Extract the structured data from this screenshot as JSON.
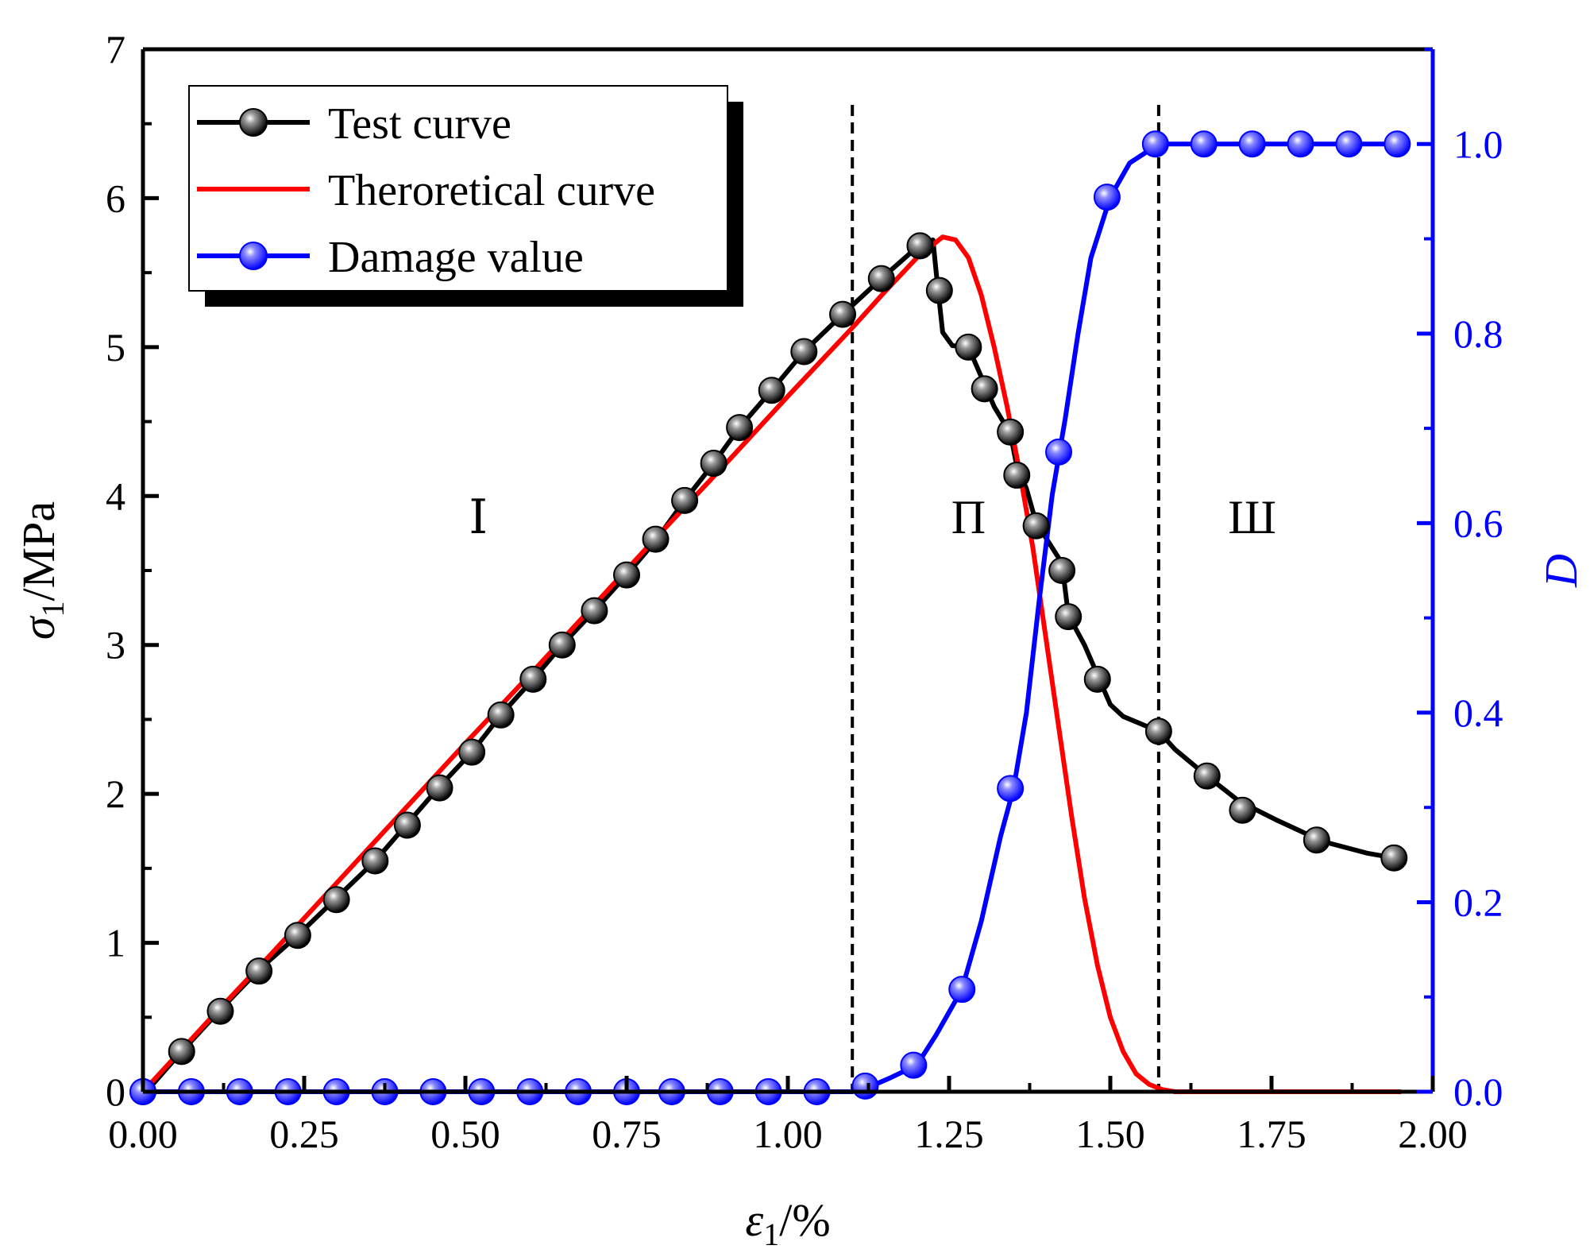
{
  "chart_data": {
    "type": "line",
    "title": "",
    "xlabel": {
      "symbol": "ε",
      "subscript": "1",
      "unit": "/%"
    },
    "ylabel": {
      "symbol": "σ",
      "subscript": "1",
      "unit": "/MPa"
    },
    "y2label": "D",
    "xlim": [
      0,
      2.0
    ],
    "ylim": [
      0,
      7
    ],
    "y2lim": [
      0,
      1.1
    ],
    "xticks": [
      "0.00",
      "0.25",
      "0.50",
      "0.75",
      "1.00",
      "1.25",
      "1.50",
      "1.75",
      "2.00"
    ],
    "yticks": [
      "0",
      "1",
      "2",
      "3",
      "4",
      "5",
      "6",
      "7"
    ],
    "y2ticks": [
      "0.0",
      "0.2",
      "0.4",
      "0.6",
      "0.8",
      "1.0"
    ],
    "legend": {
      "position": "top-left",
      "entries": [
        "Test curve",
        "Theroretical curve",
        "Damage value"
      ]
    },
    "colors": {
      "test": "#000000",
      "theory": "#ff0000",
      "damage": "#0000ff"
    },
    "divider_x": [
      1.1,
      1.575
    ],
    "regions": [
      {
        "label": "Ⅰ",
        "x": 0.52,
        "y": 3.75
      },
      {
        "label": "Π",
        "x": 1.28,
        "y": 3.75
      },
      {
        "label": "Ш",
        "x": 1.72,
        "y": 3.75
      }
    ],
    "series": [
      {
        "name": "Test curve",
        "axis": "left",
        "line": [
          [
            0.005,
            0.0
          ],
          [
            0.06,
            0.27
          ],
          [
            0.12,
            0.55
          ],
          [
            0.18,
            0.82
          ],
          [
            0.24,
            1.05
          ],
          [
            0.3,
            1.3
          ],
          [
            0.36,
            1.55
          ],
          [
            0.41,
            1.8
          ],
          [
            0.46,
            2.05
          ],
          [
            0.51,
            2.28
          ],
          [
            0.555,
            2.53
          ],
          [
            0.605,
            2.77
          ],
          [
            0.65,
            3.0
          ],
          [
            0.7,
            3.23
          ],
          [
            0.75,
            3.47
          ],
          [
            0.795,
            3.7
          ],
          [
            0.84,
            3.97
          ],
          [
            0.885,
            4.22
          ],
          [
            0.925,
            4.46
          ],
          [
            0.975,
            4.71
          ],
          [
            1.025,
            4.97
          ],
          [
            1.085,
            5.22
          ],
          [
            1.145,
            5.46
          ],
          [
            1.2,
            5.67
          ],
          [
            1.225,
            5.72
          ],
          [
            1.23,
            5.5
          ],
          [
            1.24,
            5.1
          ],
          [
            1.255,
            5.01
          ],
          [
            1.28,
            5.0
          ],
          [
            1.3,
            4.8
          ],
          [
            1.32,
            4.6
          ],
          [
            1.345,
            4.42
          ],
          [
            1.355,
            4.2
          ],
          [
            1.37,
            4.05
          ],
          [
            1.385,
            3.82
          ],
          [
            1.4,
            3.72
          ],
          [
            1.425,
            3.55
          ],
          [
            1.435,
            3.2
          ],
          [
            1.46,
            3.0
          ],
          [
            1.48,
            2.8
          ],
          [
            1.5,
            2.6
          ],
          [
            1.52,
            2.52
          ],
          [
            1.575,
            2.42
          ],
          [
            1.6,
            2.3
          ],
          [
            1.65,
            2.12
          ],
          [
            1.7,
            1.95
          ],
          [
            1.76,
            1.82
          ],
          [
            1.83,
            1.68
          ],
          [
            1.9,
            1.6
          ],
          [
            1.94,
            1.57
          ]
        ],
        "markers": [
          [
            0.0,
            0.0
          ],
          [
            0.06,
            0.27
          ],
          [
            0.12,
            0.54
          ],
          [
            0.18,
            0.81
          ],
          [
            0.24,
            1.05
          ],
          [
            0.3,
            1.29
          ],
          [
            0.36,
            1.55
          ],
          [
            0.41,
            1.79
          ],
          [
            0.46,
            2.04
          ],
          [
            0.51,
            2.28
          ],
          [
            0.555,
            2.53
          ],
          [
            0.605,
            2.77
          ],
          [
            0.65,
            3.0
          ],
          [
            0.7,
            3.23
          ],
          [
            0.75,
            3.47
          ],
          [
            0.795,
            3.71
          ],
          [
            0.84,
            3.97
          ],
          [
            0.885,
            4.22
          ],
          [
            0.925,
            4.46
          ],
          [
            0.975,
            4.71
          ],
          [
            1.025,
            4.97
          ],
          [
            1.085,
            5.22
          ],
          [
            1.145,
            5.46
          ],
          [
            1.205,
            5.68
          ],
          [
            1.235,
            5.38
          ],
          [
            1.28,
            5.0
          ],
          [
            1.305,
            4.72
          ],
          [
            1.345,
            4.43
          ],
          [
            1.355,
            4.14
          ],
          [
            1.385,
            3.8
          ],
          [
            1.425,
            3.5
          ],
          [
            1.435,
            3.19
          ],
          [
            1.48,
            2.77
          ],
          [
            1.575,
            2.42
          ],
          [
            1.65,
            2.12
          ],
          [
            1.705,
            1.89
          ],
          [
            1.82,
            1.69
          ],
          [
            1.94,
            1.57
          ]
        ]
      },
      {
        "name": "Theroretical curve",
        "axis": "left",
        "line": [
          [
            0.0,
            0.0
          ],
          [
            0.1,
            0.47
          ],
          [
            0.2,
            0.93
          ],
          [
            0.3,
            1.4
          ],
          [
            0.4,
            1.87
          ],
          [
            0.5,
            2.34
          ],
          [
            0.6,
            2.8
          ],
          [
            0.7,
            3.27
          ],
          [
            0.8,
            3.74
          ],
          [
            0.9,
            4.2
          ],
          [
            1.0,
            4.67
          ],
          [
            1.05,
            4.9
          ],
          [
            1.1,
            5.13
          ],
          [
            1.15,
            5.37
          ],
          [
            1.2,
            5.6
          ],
          [
            1.24,
            5.74
          ],
          [
            1.26,
            5.72
          ],
          [
            1.28,
            5.6
          ],
          [
            1.3,
            5.35
          ],
          [
            1.32,
            5.0
          ],
          [
            1.34,
            4.6
          ],
          [
            1.36,
            4.15
          ],
          [
            1.38,
            3.65
          ],
          [
            1.4,
            3.05
          ],
          [
            1.42,
            2.45
          ],
          [
            1.44,
            1.85
          ],
          [
            1.46,
            1.3
          ],
          [
            1.48,
            0.85
          ],
          [
            1.5,
            0.5
          ],
          [
            1.52,
            0.27
          ],
          [
            1.54,
            0.12
          ],
          [
            1.56,
            0.05
          ],
          [
            1.58,
            0.015
          ],
          [
            1.6,
            0.0
          ],
          [
            1.95,
            0.0
          ]
        ]
      },
      {
        "name": "Damage value",
        "axis": "right",
        "line": [
          [
            0.0,
            0.0
          ],
          [
            1.05,
            0.0
          ],
          [
            1.1,
            0.0
          ],
          [
            1.13,
            0.006
          ],
          [
            1.16,
            0.015
          ],
          [
            1.2,
            0.028
          ],
          [
            1.23,
            0.06
          ],
          [
            1.27,
            0.108
          ],
          [
            1.3,
            0.18
          ],
          [
            1.33,
            0.27
          ],
          [
            1.35,
            0.32
          ],
          [
            1.37,
            0.4
          ],
          [
            1.39,
            0.52
          ],
          [
            1.41,
            0.63
          ],
          [
            1.43,
            0.71
          ],
          [
            1.45,
            0.8
          ],
          [
            1.47,
            0.88
          ],
          [
            1.5,
            0.944
          ],
          [
            1.53,
            0.98
          ],
          [
            1.575,
            1.0
          ],
          [
            1.95,
            1.0
          ]
        ],
        "markers": [
          [
            0.0,
            0.0
          ],
          [
            0.075,
            0.0
          ],
          [
            0.15,
            0.0
          ],
          [
            0.225,
            0.0
          ],
          [
            0.3,
            0.0
          ],
          [
            0.375,
            0.0
          ],
          [
            0.45,
            0.0
          ],
          [
            0.525,
            0.0
          ],
          [
            0.6,
            0.0
          ],
          [
            0.675,
            0.0
          ],
          [
            0.75,
            0.0
          ],
          [
            0.82,
            0.0
          ],
          [
            0.895,
            0.0
          ],
          [
            0.97,
            0.0
          ],
          [
            1.045,
            0.0
          ],
          [
            1.12,
            0.006
          ],
          [
            1.195,
            0.028
          ],
          [
            1.27,
            0.108
          ],
          [
            1.345,
            0.32
          ],
          [
            1.42,
            0.675
          ],
          [
            1.495,
            0.944
          ],
          [
            1.57,
            1.0
          ],
          [
            1.645,
            1.0
          ],
          [
            1.72,
            1.0
          ],
          [
            1.795,
            1.0
          ],
          [
            1.87,
            1.0
          ],
          [
            1.945,
            1.0
          ]
        ]
      }
    ]
  }
}
